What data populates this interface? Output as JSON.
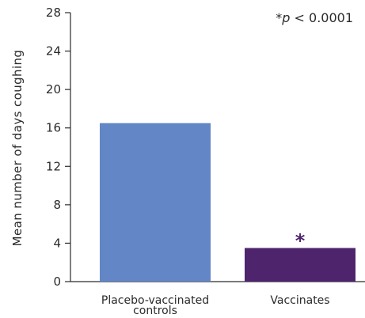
{
  "chart_data": {
    "type": "bar",
    "ylabel": "Mean number of days coughing",
    "xlabel": "",
    "ylim": [
      0,
      28
    ],
    "yticks": [
      0,
      4,
      8,
      12,
      16,
      20,
      24,
      28
    ],
    "grid": false,
    "categories": [
      {
        "lines": [
          "Placebo-vaccinated",
          "controls"
        ]
      },
      {
        "lines": [
          "Vaccinates"
        ]
      }
    ],
    "values": [
      16.5,
      3.5
    ],
    "colors": [
      "#6286c6",
      "#4e256d"
    ],
    "significance_markers": [
      "",
      "*"
    ],
    "significance_color": "#4e256d",
    "annotation": {
      "star": "*",
      "p_symbol": "p",
      "comparison": " < 0.0001"
    }
  }
}
